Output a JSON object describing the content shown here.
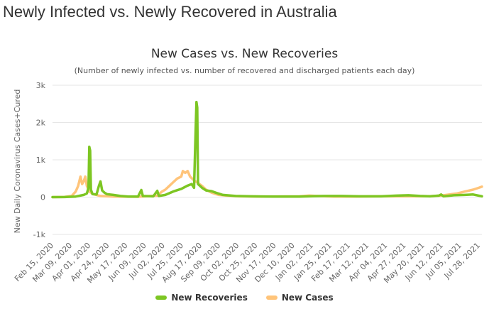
{
  "page": {
    "heading": "Newly Infected vs. Newly Recovered in Australia"
  },
  "chart_data": {
    "type": "line",
    "title": "New Cases vs. New Recoveries",
    "subtitle": "(Number of newly infected vs. number of recovered and discharged patients each day)",
    "ylabel": "New Daily Coronavirus Cases+Cured",
    "xlabel": "",
    "ylim": [
      -1000,
      3000
    ],
    "yticks": [
      -1000,
      0,
      1000,
      2000,
      3000
    ],
    "ytick_labels": [
      "-1k",
      "0",
      "1k",
      "2k",
      "3k"
    ],
    "x_range": [
      "2020-02-15",
      "2021-08-05"
    ],
    "xtick_labels": [
      "Feb 15, 2020",
      "Mar 09, 2020",
      "Apr 01, 2020",
      "Apr 24, 2020",
      "May 17, 2020",
      "Jun 09, 2020",
      "Jul 02, 2020",
      "Jul 25, 2020",
      "Aug 17, 2020",
      "Sep 09, 2020",
      "Oct 02, 2020",
      "Oct 25, 2020",
      "Nov 17, 2020",
      "Dec 10, 2020",
      "Jan 02, 2021",
      "Jan 25, 2021",
      "Feb 17, 2021",
      "Mar 12, 2021",
      "Apr 04, 2021",
      "Apr 27, 2021",
      "May 20, 2021",
      "Jun 12, 2021",
      "Jul 05, 2021",
      "Jul 28, 2021"
    ],
    "grid": true,
    "legend_position": "bottom-center",
    "series": [
      {
        "name": "New Recoveries",
        "color": "#7dc623",
        "points": [
          [
            "2020-02-15",
            0
          ],
          [
            "2020-03-01",
            2
          ],
          [
            "2020-03-15",
            15
          ],
          [
            "2020-03-25",
            60
          ],
          [
            "2020-03-29",
            100
          ],
          [
            "2020-03-31",
            250
          ],
          [
            "2020-04-01",
            1350
          ],
          [
            "2020-04-02",
            1250
          ],
          [
            "2020-04-03",
            200
          ],
          [
            "2020-04-05",
            80
          ],
          [
            "2020-04-10",
            70
          ],
          [
            "2020-04-13",
            300
          ],
          [
            "2020-04-15",
            420
          ],
          [
            "2020-04-17",
            180
          ],
          [
            "2020-04-20",
            120
          ],
          [
            "2020-04-23",
            80
          ],
          [
            "2020-05-01",
            60
          ],
          [
            "2020-05-10",
            30
          ],
          [
            "2020-05-20",
            15
          ],
          [
            "2020-06-01",
            15
          ],
          [
            "2020-06-05",
            190
          ],
          [
            "2020-06-07",
            30
          ],
          [
            "2020-06-20",
            20
          ],
          [
            "2020-06-25",
            170
          ],
          [
            "2020-06-27",
            30
          ],
          [
            "2020-07-05",
            60
          ],
          [
            "2020-07-15",
            150
          ],
          [
            "2020-07-25",
            220
          ],
          [
            "2020-08-01",
            300
          ],
          [
            "2020-08-07",
            350
          ],
          [
            "2020-08-10",
            250
          ],
          [
            "2020-08-13",
            2550
          ],
          [
            "2020-08-14",
            2400
          ],
          [
            "2020-08-15",
            350
          ],
          [
            "2020-08-20",
            250
          ],
          [
            "2020-08-25",
            180
          ],
          [
            "2020-09-01",
            160
          ],
          [
            "2020-09-06",
            120
          ],
          [
            "2020-09-15",
            60
          ],
          [
            "2020-10-01",
            30
          ],
          [
            "2020-10-20",
            20
          ],
          [
            "2020-11-15",
            15
          ],
          [
            "2020-12-20",
            15
          ],
          [
            "2021-01-05",
            25
          ],
          [
            "2021-01-20",
            30
          ],
          [
            "2021-02-10",
            30
          ],
          [
            "2021-03-05",
            20
          ],
          [
            "2021-04-01",
            20
          ],
          [
            "2021-04-20",
            40
          ],
          [
            "2021-05-05",
            50
          ],
          [
            "2021-05-20",
            30
          ],
          [
            "2021-06-01",
            20
          ],
          [
            "2021-06-12",
            40
          ],
          [
            "2021-06-15",
            70
          ],
          [
            "2021-06-18",
            20
          ],
          [
            "2021-07-01",
            50
          ],
          [
            "2021-07-15",
            60
          ],
          [
            "2021-07-25",
            70
          ],
          [
            "2021-08-05",
            20
          ]
        ]
      },
      {
        "name": "New Cases",
        "color": "#ffc47a",
        "points": [
          [
            "2020-02-15",
            0
          ],
          [
            "2020-03-01",
            5
          ],
          [
            "2020-03-10",
            30
          ],
          [
            "2020-03-15",
            150
          ],
          [
            "2020-03-18",
            300
          ],
          [
            "2020-03-21",
            550
          ],
          [
            "2020-03-23",
            350
          ],
          [
            "2020-03-25",
            420
          ],
          [
            "2020-03-27",
            550
          ],
          [
            "2020-03-29",
            300
          ],
          [
            "2020-04-01",
            150
          ],
          [
            "2020-04-06",
            80
          ],
          [
            "2020-04-15",
            30
          ],
          [
            "2020-05-01",
            15
          ],
          [
            "2020-06-01",
            10
          ],
          [
            "2020-06-25",
            40
          ],
          [
            "2020-07-01",
            150
          ],
          [
            "2020-07-05",
            200
          ],
          [
            "2020-07-10",
            300
          ],
          [
            "2020-07-15",
            400
          ],
          [
            "2020-07-20",
            500
          ],
          [
            "2020-07-25",
            550
          ],
          [
            "2020-07-27",
            700
          ],
          [
            "2020-07-30",
            650
          ],
          [
            "2020-08-02",
            700
          ],
          [
            "2020-08-05",
            550
          ],
          [
            "2020-08-10",
            450
          ],
          [
            "2020-08-15",
            380
          ],
          [
            "2020-08-20",
            300
          ],
          [
            "2020-08-25",
            200
          ],
          [
            "2020-09-01",
            120
          ],
          [
            "2020-09-10",
            60
          ],
          [
            "2020-09-20",
            40
          ],
          [
            "2020-10-05",
            20
          ],
          [
            "2020-11-01",
            15
          ],
          [
            "2020-12-20",
            20
          ],
          [
            "2021-01-01",
            40
          ],
          [
            "2021-01-10",
            30
          ],
          [
            "2021-02-01",
            15
          ],
          [
            "2021-03-01",
            15
          ],
          [
            "2021-04-01",
            20
          ],
          [
            "2021-05-01",
            20
          ],
          [
            "2021-06-01",
            25
          ],
          [
            "2021-06-15",
            40
          ],
          [
            "2021-06-25",
            70
          ],
          [
            "2021-07-05",
            100
          ],
          [
            "2021-07-15",
            150
          ],
          [
            "2021-07-25",
            200
          ],
          [
            "2021-08-01",
            250
          ],
          [
            "2021-08-05",
            280
          ]
        ]
      }
    ]
  }
}
